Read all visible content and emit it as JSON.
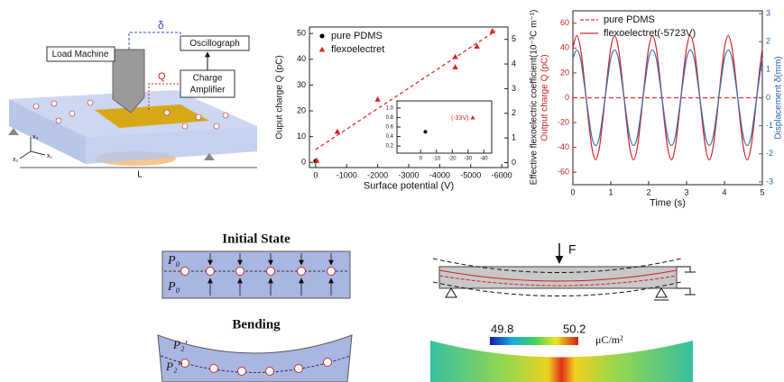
{
  "chart_data": [
    {
      "type": "scatter",
      "xlabel": "Surface potential (V)",
      "ylabel": "Ouput charge Q (pC)",
      "y2label": "Effective flexoelectric coefficient(10⁻³C m⁻¹)",
      "xlim": [
        200,
        -6200
      ],
      "xticks": [
        0,
        -1000,
        -2000,
        -3000,
        -4000,
        -5000,
        -6000
      ],
      "ylim": [
        -2,
        52.5
      ],
      "yticks": [
        0,
        10,
        20,
        30,
        40,
        50
      ],
      "y2lim": [
        -0.2,
        5.5
      ],
      "y2ticks": [
        0,
        1,
        2,
        3,
        4,
        5
      ],
      "series": [
        {
          "name": "pure PDMS",
          "color": "#000000",
          "marker": "circle",
          "x": [
            0
          ],
          "values": [
            0.5
          ]
        },
        {
          "name": "flexoelectret",
          "color": "#e0201c",
          "marker": "triangle",
          "x": [
            -33,
            -700,
            -2000,
            -4500,
            -4500,
            -5200,
            -5700
          ],
          "values": [
            0.8,
            12,
            24.5,
            37,
            41,
            45,
            51
          ]
        }
      ],
      "trend_line": {
        "color": "#e0201c",
        "x": [
          0,
          -5800
        ],
        "values": [
          5,
          51
        ]
      }
    },
    {
      "type": "scatter",
      "xlim": [
        15,
        -45
      ],
      "xticks": [
        0,
        -10,
        -20,
        -30,
        -40
      ],
      "ylim": [
        0.05,
        1.15
      ],
      "yticks": [
        0.2,
        0.4,
        0.6,
        0.8,
        {
          "value": 1,
          "label": "1.0"
        }
      ],
      "annotation": "(-33V)",
      "series": [
        {
          "color": "#000000",
          "marker": "circle",
          "x": [
            -3
          ],
          "values": [
            0.5
          ]
        },
        {
          "color": "#e0201c",
          "marker": "triangle",
          "x": [
            -33
          ],
          "values": [
            0.8
          ]
        }
      ]
    },
    {
      "type": "line",
      "xlabel": "Time (s)",
      "ylabel": "Output charge Q (pC)",
      "y2label": "Displacement δ(mm)",
      "xlim": [
        0,
        5
      ],
      "xticks": [
        0,
        1,
        2,
        3,
        4,
        5
      ],
      "ylim": [
        -70,
        70
      ],
      "yticks": [
        -60,
        -40,
        -20,
        0,
        20,
        40,
        60
      ],
      "y2lim": [
        -3.1,
        3.1
      ],
      "y2ticks": [
        -3,
        -2,
        -1,
        0,
        1,
        2,
        3
      ],
      "x": [
        0,
        0.1,
        0.2,
        0.3,
        0.4,
        0.5,
        0.6,
        0.7,
        0.8,
        0.9,
        1,
        1.1,
        1.2,
        1.3,
        1.4,
        1.5,
        1.6,
        1.7,
        1.8,
        1.9,
        2,
        2.1,
        2.2,
        2.3,
        2.4,
        2.5,
        2.6,
        2.7,
        2.8,
        2.9,
        3,
        3.1,
        3.2,
        3.3,
        3.4,
        3.5,
        3.6,
        3.7,
        3.8,
        3.9,
        4,
        4.1,
        4.2,
        4.3,
        4.4,
        4.5,
        4.6,
        4.7,
        4.8,
        4.9,
        5
      ],
      "series": [
        {
          "name": "pure PDMS",
          "color": "#e0302a",
          "dash": true,
          "x": [
            0,
            5
          ],
          "values": [
            0,
            0
          ]
        },
        {
          "name": "flexoelectret(-5723V)",
          "color": "#d42027",
          "values": [
            40,
            50,
            40,
            15,
            -15,
            -40,
            -50,
            -40,
            -15,
            15,
            40,
            50,
            40,
            15,
            -15,
            -40,
            -50,
            -40,
            -15,
            15,
            40,
            50,
            40,
            15,
            -15,
            -40,
            -50,
            -40,
            -15,
            15,
            40,
            50,
            40,
            15,
            -15,
            -40,
            -50,
            -40,
            -15,
            15,
            40,
            50,
            40,
            15,
            -15,
            -40,
            -50,
            -40,
            -15,
            15,
            40
          ]
        },
        {
          "color": "#3a6fa8",
          "axis": "y2",
          "values": [
            1.4,
            1.7,
            1.4,
            0.5,
            -0.5,
            -1.4,
            -1.7,
            -1.4,
            -0.5,
            0.5,
            1.4,
            1.7,
            1.4,
            0.5,
            -0.5,
            -1.4,
            -1.7,
            -1.4,
            -0.5,
            0.5,
            1.4,
            1.7,
            1.4,
            0.5,
            -0.5,
            -1.4,
            -1.7,
            -1.4,
            -0.5,
            0.5,
            1.4,
            1.7,
            1.4,
            0.5,
            -0.5,
            -1.4,
            -1.7,
            -1.4,
            -0.5,
            0.5,
            1.4,
            1.7,
            1.4,
            0.5,
            -0.5,
            -1.4,
            -1.7,
            -1.4,
            -0.5,
            0.5,
            1.4
          ]
        }
      ]
    }
  ],
  "diagram": {
    "load_machine": "Load Machine",
    "delta": "δ",
    "oscillograph": "Oscillograph",
    "q": "Q",
    "charge_amplifier": [
      "Charge",
      "Amplifier"
    ],
    "length": "L",
    "axes": [
      "x₃",
      "x₁",
      "x₂"
    ],
    "initial_state": "Initial State",
    "p0": "P₀",
    "bending": "Bending",
    "p2_top": "P₂'",
    "p2_bottom": "P₂''",
    "force": "F",
    "colorbar_min": "49.8",
    "colorbar_max": "50.2",
    "colorbar_unit": "μC/m²"
  }
}
